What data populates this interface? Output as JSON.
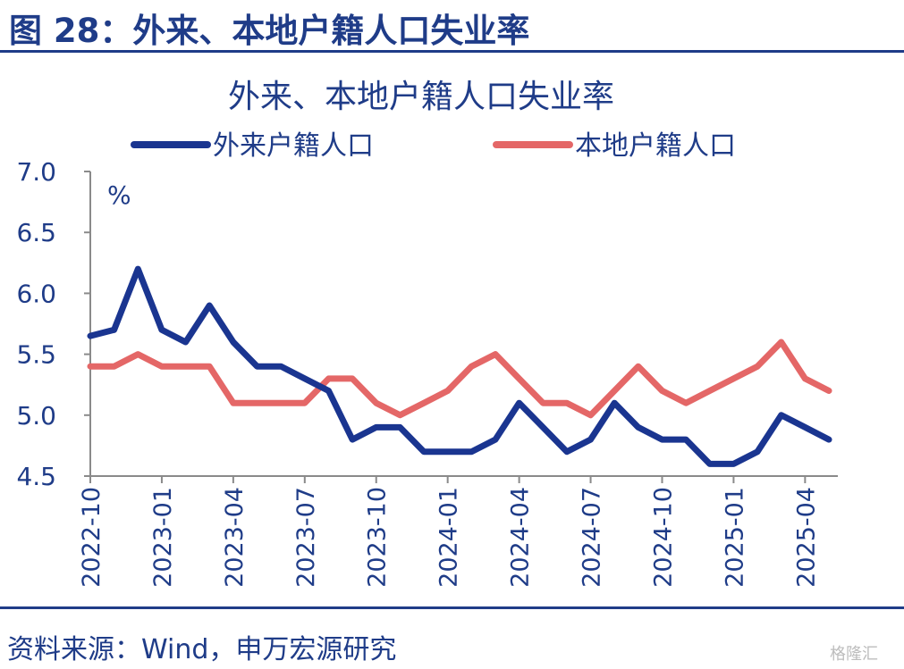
{
  "figure": {
    "title": "图 28：外来、本地户籍人口失业率",
    "source": "资料来源：Wind，申万宏源研究",
    "watermark": "格隆汇"
  },
  "colors": {
    "accent": "#1f3c88",
    "series_migrant": "#1a3590",
    "series_local": "#e46767",
    "axis_text": "#1f3c88"
  },
  "chart_data": {
    "type": "line",
    "title": "外来、本地户籍人口失业率",
    "ylabel": "%",
    "xlabel": "",
    "ylim": [
      4.5,
      7.0
    ],
    "yticks": [
      "7.0",
      "6.5",
      "6.0",
      "5.5",
      "5.0",
      "4.5"
    ],
    "x": [
      "2022-10",
      "2022-11",
      "2022-12",
      "2023-01",
      "2023-02",
      "2023-03",
      "2023-04",
      "2023-05",
      "2023-06",
      "2023-07",
      "2023-08",
      "2023-09",
      "2023-10",
      "2023-11",
      "2023-12",
      "2024-01",
      "2024-02",
      "2024-03",
      "2024-04",
      "2024-05",
      "2024-06",
      "2024-07",
      "2024-08",
      "2024-09",
      "2024-10",
      "2024-11",
      "2024-12",
      "2025-01",
      "2025-02",
      "2025-03",
      "2025-04",
      "2025-05"
    ],
    "xtick_labels": [
      "2022-10",
      "2023-01",
      "2023-04",
      "2023-07",
      "2023-10",
      "2024-01",
      "2024-04",
      "2024-07",
      "2024-10",
      "2025-01",
      "2025-04"
    ],
    "legend_position": "top",
    "grid": false,
    "series": [
      {
        "name": "外来户籍人口",
        "color": "#1a3590",
        "values": [
          5.65,
          5.7,
          6.2,
          5.7,
          5.6,
          5.9,
          5.6,
          5.4,
          5.4,
          5.3,
          5.2,
          4.8,
          4.9,
          4.9,
          4.7,
          4.7,
          4.7,
          4.8,
          5.1,
          4.9,
          4.7,
          4.8,
          5.1,
          4.9,
          4.8,
          4.8,
          4.6,
          4.6,
          4.7,
          5.0,
          4.9,
          4.8
        ]
      },
      {
        "name": "本地户籍人口",
        "color": "#e46767",
        "values": [
          5.4,
          5.4,
          5.5,
          5.4,
          5.4,
          5.4,
          5.1,
          5.1,
          5.1,
          5.1,
          5.3,
          5.3,
          5.1,
          5.0,
          5.1,
          5.2,
          5.4,
          5.5,
          5.3,
          5.1,
          5.1,
          5.0,
          5.2,
          5.4,
          5.2,
          5.1,
          5.2,
          5.3,
          5.4,
          5.6,
          5.3,
          5.2
        ]
      }
    ]
  }
}
